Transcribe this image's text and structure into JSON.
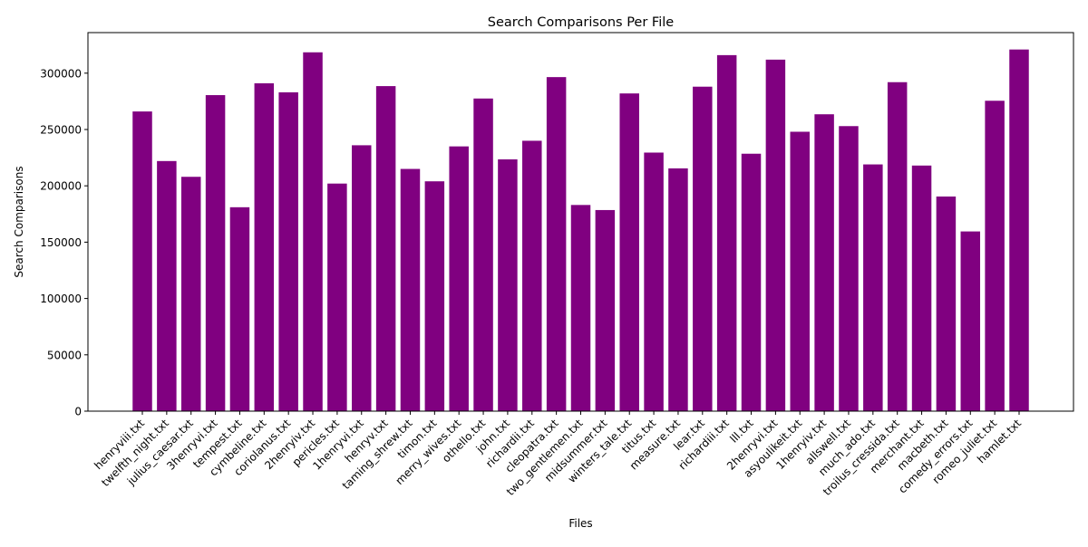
{
  "chart_data": {
    "type": "bar",
    "title": "Search Comparisons Per File",
    "xlabel": "Files",
    "ylabel": "Search Comparisons",
    "ylim": [
      0,
      336000
    ],
    "yticks": [
      0,
      50000,
      100000,
      150000,
      200000,
      250000,
      300000
    ],
    "bar_color": "#800080",
    "grid": false,
    "categories": [
      "henryviii.txt",
      "twelfth_night.txt",
      "julius_caesar.txt",
      "3henryvi.txt",
      "tempest.txt",
      "cymbeline.txt",
      "coriolanus.txt",
      "2henryiv.txt",
      "pericles.txt",
      "1henryvi.txt",
      "henryv.txt",
      "taming_shrew.txt",
      "timon.txt",
      "merry_wives.txt",
      "othello.txt",
      "john.txt",
      "richardii.txt",
      "cleopatra.txt",
      "two_gentlemen.txt",
      "midsummer.txt",
      "winters_tale.txt",
      "titus.txt",
      "measure.txt",
      "lear.txt",
      "richardiii.txt",
      "lll.txt",
      "2henryvi.txt",
      "asyoulikeit.txt",
      "1henryiv.txt",
      "allswell.txt",
      "much_ado.txt",
      "troilus_cressida.txt",
      "merchant.txt",
      "macbeth.txt",
      "comedy_errors.txt",
      "romeo_juliet.txt",
      "hamlet.txt"
    ],
    "values": [
      266000,
      222000,
      208000,
      280500,
      181000,
      291000,
      283000,
      318500,
      202000,
      236000,
      288500,
      215000,
      204000,
      235000,
      277500,
      223500,
      240000,
      296500,
      183000,
      178500,
      282000,
      229500,
      215500,
      288000,
      316000,
      228500,
      312000,
      248000,
      263500,
      253000,
      219000,
      292000,
      218000,
      190500,
      159500,
      275500,
      321000
    ]
  }
}
